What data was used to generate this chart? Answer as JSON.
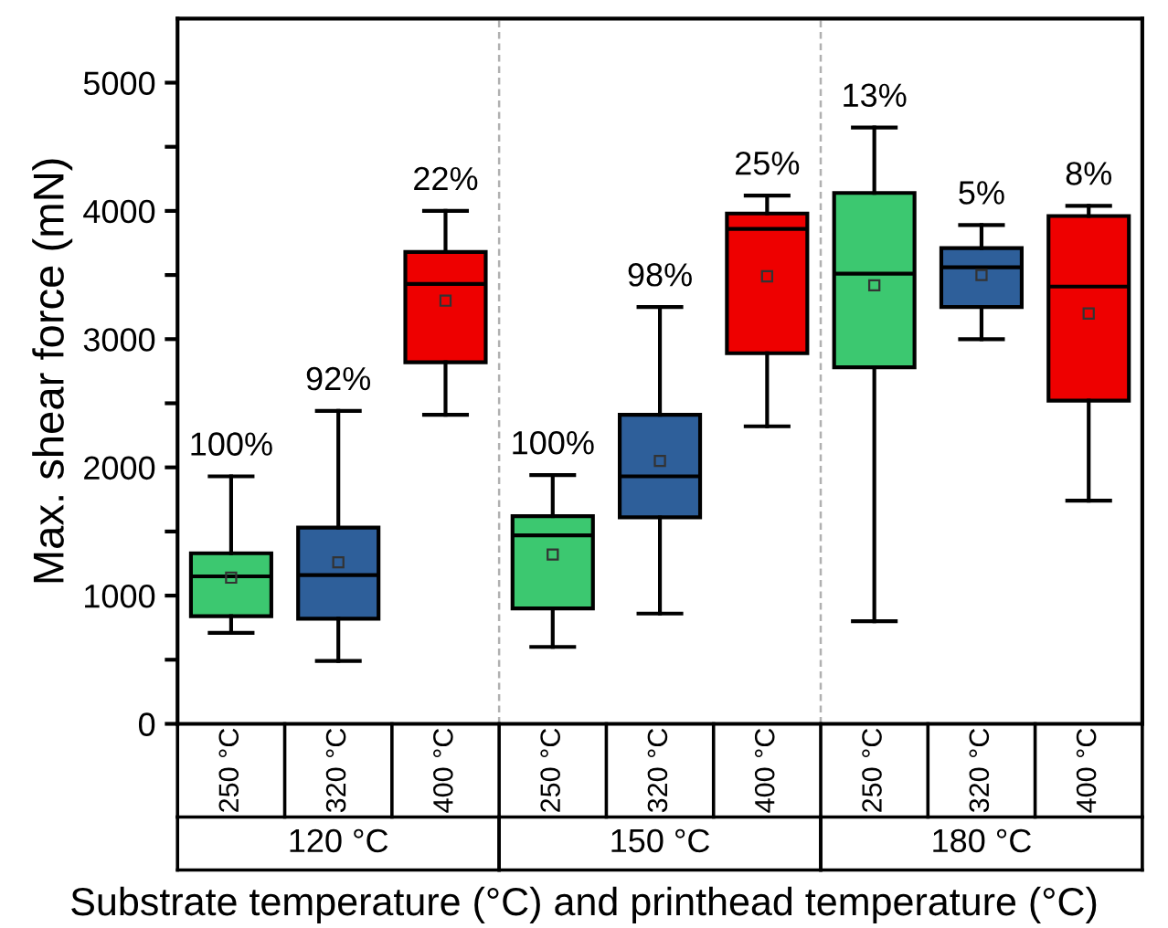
{
  "chart_data": {
    "type": "box",
    "xlabel": "Substrate temperature (°C) and printhead temperature (°C)",
    "ylabel": "Max. shear force (mN)",
    "categories": [
      "250 °C",
      "320 °C",
      "400 °C",
      "250 °C",
      "320 °C",
      "400 °C",
      "250 °C",
      "320 °C",
      "400 °C"
    ],
    "colors": [
      "#3cc870",
      "#2e5f9a",
      "#ee0000",
      "#3cc870",
      "#2e5f9a",
      "#ee0000",
      "#3cc870",
      "#2e5f9a",
      "#ee0000"
    ],
    "boxes": [
      {
        "low": 710,
        "q1": 840,
        "median": 1150,
        "q3": 1330,
        "high": 1930,
        "mean": 1140
      },
      {
        "low": 490,
        "q1": 820,
        "median": 1160,
        "q3": 1530,
        "high": 2440,
        "mean": 1260
      },
      {
        "low": 2410,
        "q1": 2820,
        "median": 3430,
        "q3": 3680,
        "high": 4000,
        "mean": 3300
      },
      {
        "low": 600,
        "q1": 900,
        "median": 1470,
        "q3": 1620,
        "high": 1940,
        "mean": 1320
      },
      {
        "low": 860,
        "q1": 1610,
        "median": 1930,
        "q3": 2410,
        "high": 3250,
        "mean": 2050
      },
      {
        "low": 2320,
        "q1": 2890,
        "median": 3860,
        "q3": 3980,
        "high": 4120,
        "mean": 3490
      },
      {
        "low": 800,
        "q1": 2780,
        "median": 3510,
        "q3": 4140,
        "high": 4650,
        "mean": 3420
      },
      {
        "low": 3000,
        "q1": 3250,
        "median": 3560,
        "q3": 3710,
        "high": 3890,
        "mean": 3500
      },
      {
        "low": 1740,
        "q1": 2520,
        "median": 3410,
        "q3": 3960,
        "high": 4040,
        "mean": 3200
      }
    ],
    "annotations": [
      "100%",
      "92%",
      "22%",
      "100%",
      "98%",
      "25%",
      "13%",
      "5%",
      "8%",
      "120 °C",
      "150 °C",
      "180 °C"
    ],
    "ylim": [
      0,
      5500
    ],
    "yticks": [
      0,
      {
        "value": 500,
        "label": null
      },
      1000,
      {
        "value": 1500,
        "label": null
      },
      2000,
      {
        "value": 2500,
        "label": null
      },
      3000,
      {
        "value": 3500,
        "label": null
      },
      4000,
      {
        "value": 4500,
        "label": null
      },
      5000
    ],
    "grid": false,
    "legend": false
  }
}
